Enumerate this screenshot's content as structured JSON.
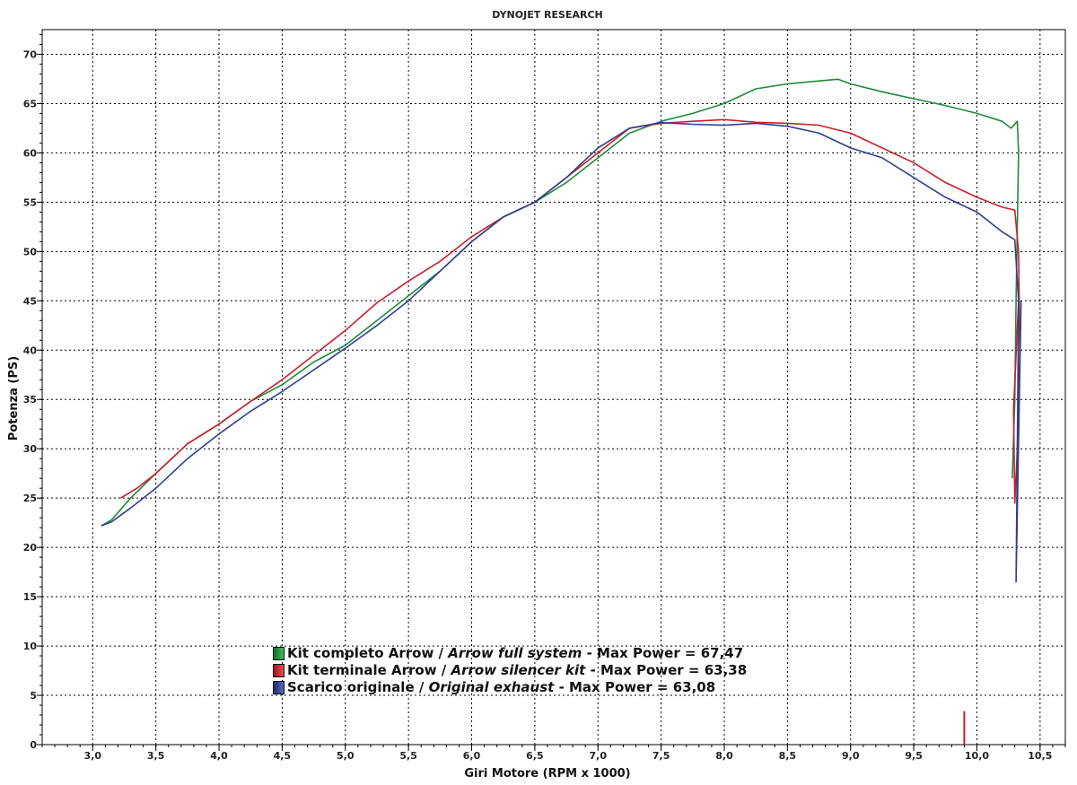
{
  "chart_data": {
    "type": "line",
    "title": "DYNOJET RESEARCH",
    "xlabel": "Giri Motore (RPM x 1000)",
    "ylabel": "Potenza (PS)",
    "xlim": [
      2.6,
      10.7
    ],
    "ylim": [
      0,
      72.5
    ],
    "x_ticks": [
      "3,0",
      "3,5",
      "4,0",
      "4,5",
      "5,0",
      "5,5",
      "6,0",
      "6,5",
      "7,0",
      "7,5",
      "8,0",
      "8,5",
      "9,0",
      "9,5",
      "10,0",
      "10,5"
    ],
    "y_ticks": [
      "0",
      "5",
      "10",
      "15",
      "20",
      "25",
      "30",
      "35",
      "40",
      "45",
      "50",
      "55",
      "60",
      "65",
      "70"
    ],
    "x_tick_values": [
      3.0,
      3.5,
      4.0,
      4.5,
      5.0,
      5.5,
      6.0,
      6.5,
      7.0,
      7.5,
      8.0,
      8.5,
      9.0,
      9.5,
      10.0,
      10.5
    ],
    "y_tick_values": [
      0,
      5,
      10,
      15,
      20,
      25,
      30,
      35,
      40,
      45,
      50,
      55,
      60,
      65,
      70
    ],
    "grid": true,
    "legend_position": "bottom-center",
    "series": [
      {
        "name": "Kit completo Arrow",
        "name_en": "Arrow full system",
        "max_label": "- Max Power = 67,47",
        "color": "#1f8a3c",
        "x": [
          3.07,
          3.15,
          3.3,
          3.5,
          3.75,
          4.0,
          4.25,
          4.5,
          4.75,
          5.0,
          5.25,
          5.5,
          5.75,
          6.0,
          6.25,
          6.5,
          6.75,
          7.0,
          7.25,
          7.5,
          7.75,
          8.0,
          8.25,
          8.5,
          8.75,
          8.9,
          9.0,
          9.25,
          9.5,
          9.75,
          10.0,
          10.2,
          10.27,
          10.32,
          10.33,
          10.31,
          10.3,
          10.28
        ],
        "y": [
          22.2,
          22.8,
          25.0,
          27.5,
          30.5,
          32.5,
          34.8,
          36.5,
          38.8,
          40.5,
          43.0,
          45.5,
          48.0,
          51.0,
          53.5,
          55.0,
          57.0,
          59.5,
          62.0,
          63.2,
          64.0,
          65.0,
          66.5,
          67.0,
          67.3,
          67.47,
          67.0,
          66.2,
          65.5,
          64.8,
          64.0,
          63.2,
          62.5,
          63.2,
          60.0,
          45.0,
          35.0,
          27.0
        ]
      },
      {
        "name": "Kit terminale Arrow",
        "name_en": "Arrow silencer kit",
        "max_label": "- Max Power = 63,38",
        "color": "#c8202a",
        "x": [
          3.22,
          3.35,
          3.5,
          3.75,
          4.0,
          4.25,
          4.5,
          4.75,
          5.0,
          5.25,
          5.5,
          5.75,
          6.0,
          6.25,
          6.5,
          6.75,
          7.0,
          7.25,
          7.5,
          7.75,
          8.0,
          8.25,
          8.5,
          8.75,
          9.0,
          9.25,
          9.5,
          9.75,
          10.0,
          10.2,
          10.3,
          10.33,
          10.34,
          10.32,
          10.3,
          10.29,
          10.33
        ],
        "y": [
          25.0,
          26.0,
          27.5,
          30.5,
          32.5,
          34.8,
          37.0,
          39.5,
          42.0,
          44.8,
          47.0,
          49.0,
          51.5,
          53.5,
          55.0,
          57.5,
          60.0,
          62.5,
          63.0,
          63.2,
          63.38,
          63.1,
          63.0,
          62.8,
          62.0,
          60.5,
          59.0,
          57.0,
          55.5,
          54.5,
          54.2,
          50.0,
          40.0,
          30.0,
          24.5,
          34.0,
          45.0
        ]
      },
      {
        "name": "Scarico originale",
        "name_en": "Original exhaust",
        "max_label": "- Max Power = 63,08",
        "color": "#2f3f8f",
        "x": [
          3.07,
          3.15,
          3.3,
          3.5,
          3.75,
          4.0,
          4.25,
          4.5,
          4.75,
          5.0,
          5.25,
          5.5,
          5.75,
          6.0,
          6.25,
          6.5,
          6.75,
          7.0,
          7.25,
          7.5,
          7.75,
          8.0,
          8.25,
          8.5,
          8.75,
          9.0,
          9.25,
          9.5,
          9.75,
          10.0,
          10.2,
          10.3,
          10.33,
          10.32,
          10.31,
          10.35
        ],
        "y": [
          22.2,
          22.6,
          24.0,
          26.0,
          29.0,
          31.5,
          33.8,
          35.8,
          38.0,
          40.2,
          42.5,
          45.0,
          48.0,
          51.0,
          53.5,
          55.0,
          57.5,
          60.5,
          62.5,
          63.08,
          62.9,
          62.8,
          63.0,
          62.7,
          62.0,
          60.5,
          59.5,
          57.5,
          55.5,
          54.0,
          52.0,
          51.2,
          45.0,
          30.0,
          16.5,
          45.0
        ]
      }
    ],
    "annotations": [
      {
        "type": "vertical-spike",
        "color": "#c8202a",
        "x": 9.9,
        "y_from": 0,
        "y_to": 3.4
      }
    ]
  }
}
